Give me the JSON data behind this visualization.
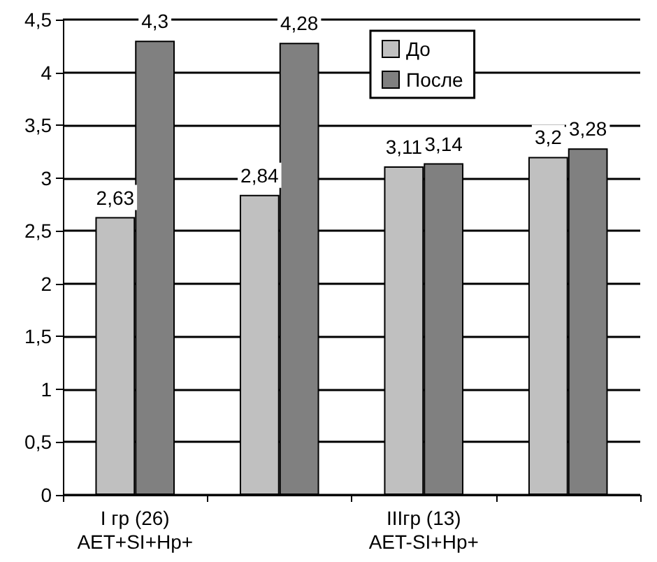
{
  "chart_data": {
    "type": "bar",
    "categories": [
      "I гр (26)\nAET+SI+Hp+",
      null,
      "IIIгр (13)\nAET-SI+Hp+",
      null
    ],
    "series": [
      {
        "name": "До",
        "color": "#c0c0c0",
        "values": [
          2.63,
          2.84,
          3.11,
          3.2
        ],
        "value_labels": [
          "2,63",
          "2,84",
          "3,11",
          "3,2"
        ]
      },
      {
        "name": "После",
        "color": "#808080",
        "values": [
          4.3,
          4.28,
          3.14,
          3.28
        ],
        "value_labels": [
          "4,3",
          "4,28",
          "3,14",
          "3,28"
        ]
      }
    ],
    "ylim": [
      0,
      4.5
    ],
    "yticks": [
      0,
      {
        "value": 0.5,
        "label": "0,5"
      },
      1,
      {
        "value": 1.5,
        "label": "1,5"
      },
      2,
      {
        "value": 2.5,
        "label": "2,5"
      },
      3,
      {
        "value": 3.5,
        "label": "3,5"
      },
      4,
      {
        "value": 4.5,
        "label": "4,5"
      }
    ],
    "grid": "y",
    "legend": "top right"
  }
}
